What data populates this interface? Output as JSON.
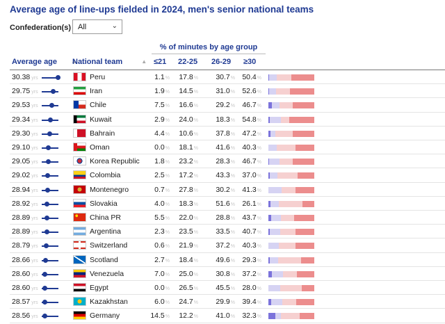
{
  "title": "Average age of line-ups fielded in 2024, men's senior national teams",
  "filter": {
    "label": "Confederation(s) ->",
    "value": "All"
  },
  "group_header": "% of minutes by age group",
  "columns": {
    "avg_age": "Average age",
    "team": "National team",
    "g1": "≤21",
    "g2": "22-25",
    "g3": "26-29",
    "g4": "≥30"
  },
  "units": {
    "yrs": "yrs",
    "pct": "%"
  },
  "colors": {
    "header_blue": "#1f3a93",
    "g1": "#7b73db",
    "g2": "#d6d3f3",
    "g3": "#f6d0d0",
    "g4": "#ec8d8d"
  },
  "rows": [
    {
      "age": "30.38",
      "team": "Peru",
      "flag": "peru",
      "g1": "1.1",
      "g2": "17.8",
      "g3": "30.7",
      "g4": "50.4"
    },
    {
      "age": "29.75",
      "team": "Iran",
      "flag": "iran",
      "g1": "1.9",
      "g2": "14.5",
      "g3": "31.0",
      "g4": "52.6"
    },
    {
      "age": "29.53",
      "team": "Chile",
      "flag": "chile",
      "g1": "7.5",
      "g2": "16.6",
      "g3": "29.2",
      "g4": "46.7"
    },
    {
      "age": "29.34",
      "team": "Kuwait",
      "flag": "kuwait",
      "g1": "2.9",
      "g2": "24.0",
      "g3": "18.3",
      "g4": "54.8"
    },
    {
      "age": "29.30",
      "team": "Bahrain",
      "flag": "bahrain",
      "g1": "4.4",
      "g2": "10.6",
      "g3": "37.8",
      "g4": "47.2"
    },
    {
      "age": "29.10",
      "team": "Oman",
      "flag": "oman",
      "g1": "0.0",
      "g2": "18.1",
      "g3": "41.6",
      "g4": "40.3"
    },
    {
      "age": "29.05",
      "team": "Korea Republic",
      "flag": "korea",
      "g1": "1.8",
      "g2": "23.2",
      "g3": "28.3",
      "g4": "46.7"
    },
    {
      "age": "29.02",
      "team": "Colombia",
      "flag": "colombia",
      "g1": "2.5",
      "g2": "17.2",
      "g3": "43.3",
      "g4": "37.0"
    },
    {
      "age": "28.94",
      "team": "Montenegro",
      "flag": "montenegro",
      "g1": "0.7",
      "g2": "27.8",
      "g3": "30.2",
      "g4": "41.3"
    },
    {
      "age": "28.92",
      "team": "Slovakia",
      "flag": "slovakia",
      "g1": "4.0",
      "g2": "18.3",
      "g3": "51.6",
      "g4": "26.1"
    },
    {
      "age": "28.89",
      "team": "China PR",
      "flag": "china",
      "g1": "5.5",
      "g2": "22.0",
      "g3": "28.8",
      "g4": "43.7"
    },
    {
      "age": "28.89",
      "team": "Argentina",
      "flag": "argentina",
      "g1": "2.3",
      "g2": "23.5",
      "g3": "33.5",
      "g4": "40.7"
    },
    {
      "age": "28.79",
      "team": "Switzerland",
      "flag": "switzerland",
      "g1": "0.6",
      "g2": "21.9",
      "g3": "37.2",
      "g4": "40.3"
    },
    {
      "age": "28.66",
      "team": "Scotland",
      "flag": "scotland",
      "g1": "2.7",
      "g2": "18.4",
      "g3": "49.6",
      "g4": "29.3"
    },
    {
      "age": "28.60",
      "team": "Venezuela",
      "flag": "venezuela",
      "g1": "7.0",
      "g2": "25.0",
      "g3": "30.8",
      "g4": "37.2"
    },
    {
      "age": "28.60",
      "team": "Egypt",
      "flag": "egypt",
      "g1": "0.0",
      "g2": "26.5",
      "g3": "45.5",
      "g4": "28.0"
    },
    {
      "age": "28.57",
      "team": "Kazakhstan",
      "flag": "kazakhstan",
      "g1": "6.0",
      "g2": "24.7",
      "g3": "29.9",
      "g4": "39.4"
    },
    {
      "age": "28.56",
      "team": "Germany",
      "flag": "germany",
      "g1": "14.5",
      "g2": "12.2",
      "g3": "41.0",
      "g4": "32.3"
    }
  ]
}
